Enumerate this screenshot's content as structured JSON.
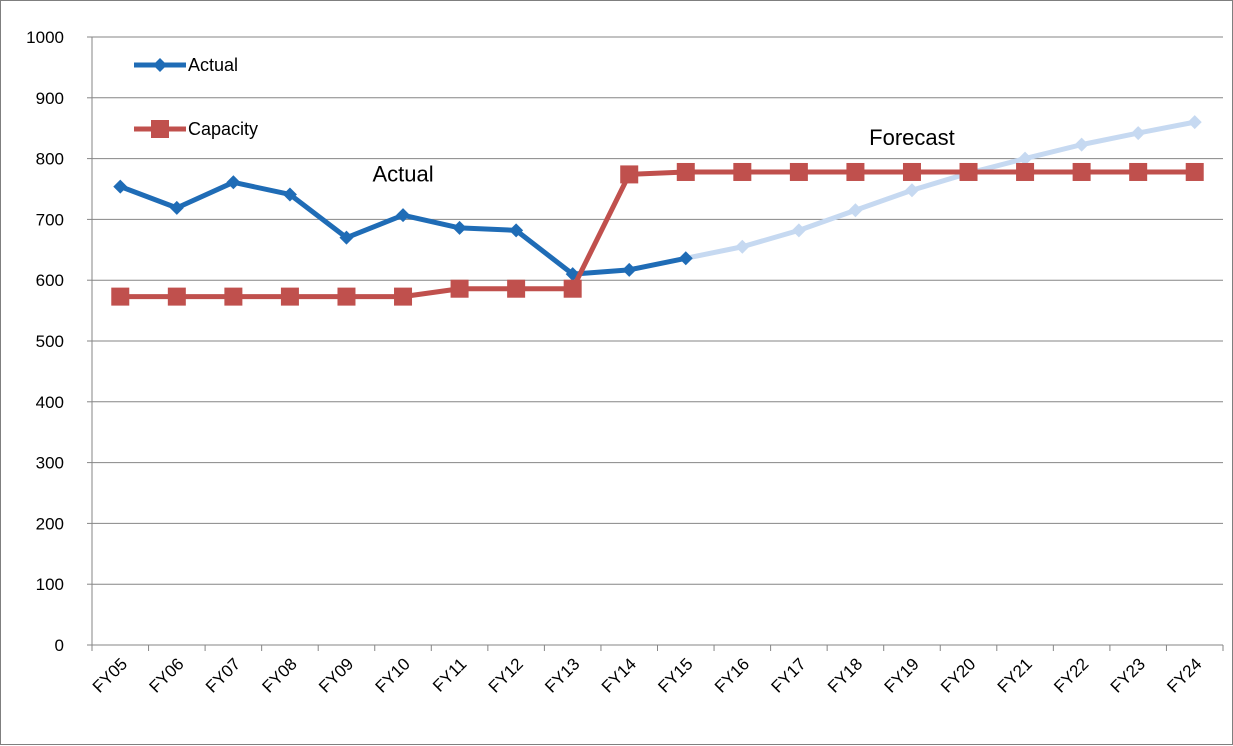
{
  "chart_data": {
    "type": "line",
    "title": "",
    "xlabel": "",
    "ylabel": "",
    "categories": [
      "FY05",
      "FY06",
      "FY07",
      "FY08",
      "FY09",
      "FY10",
      "FY11",
      "FY12",
      "FY13",
      "FY14",
      "FY15",
      "FY16",
      "FY17",
      "FY18",
      "FY19",
      "FY20",
      "FY21",
      "FY22",
      "FY23",
      "FY24"
    ],
    "ylim": [
      0,
      1000
    ],
    "yticks": [
      0,
      100,
      200,
      300,
      400,
      500,
      600,
      700,
      800,
      900,
      1000
    ],
    "grid": true,
    "legend_position": "top-left",
    "series": [
      {
        "name": "Actual",
        "color": "#1f6cb6",
        "forecast_color": "#c6d9f1",
        "marker": "diamond",
        "values": [
          754,
          719,
          761,
          741,
          670,
          707,
          686,
          682,
          610,
          617,
          636,
          655,
          682,
          715,
          748,
          776,
          800,
          823,
          842,
          860
        ],
        "forecast_start_index": 10
      },
      {
        "name": "Capacity",
        "color": "#c0504d",
        "marker": "square",
        "values": [
          573,
          573,
          573,
          573,
          573,
          573,
          586,
          586,
          586,
          774,
          778,
          778,
          778,
          778,
          778,
          778,
          778,
          778,
          778,
          778
        ]
      }
    ],
    "annotations": [
      {
        "text": "Actual",
        "x": "FY10",
        "y": 762
      },
      {
        "text": "Forecast",
        "x": "FY19",
        "y": 822
      }
    ]
  }
}
